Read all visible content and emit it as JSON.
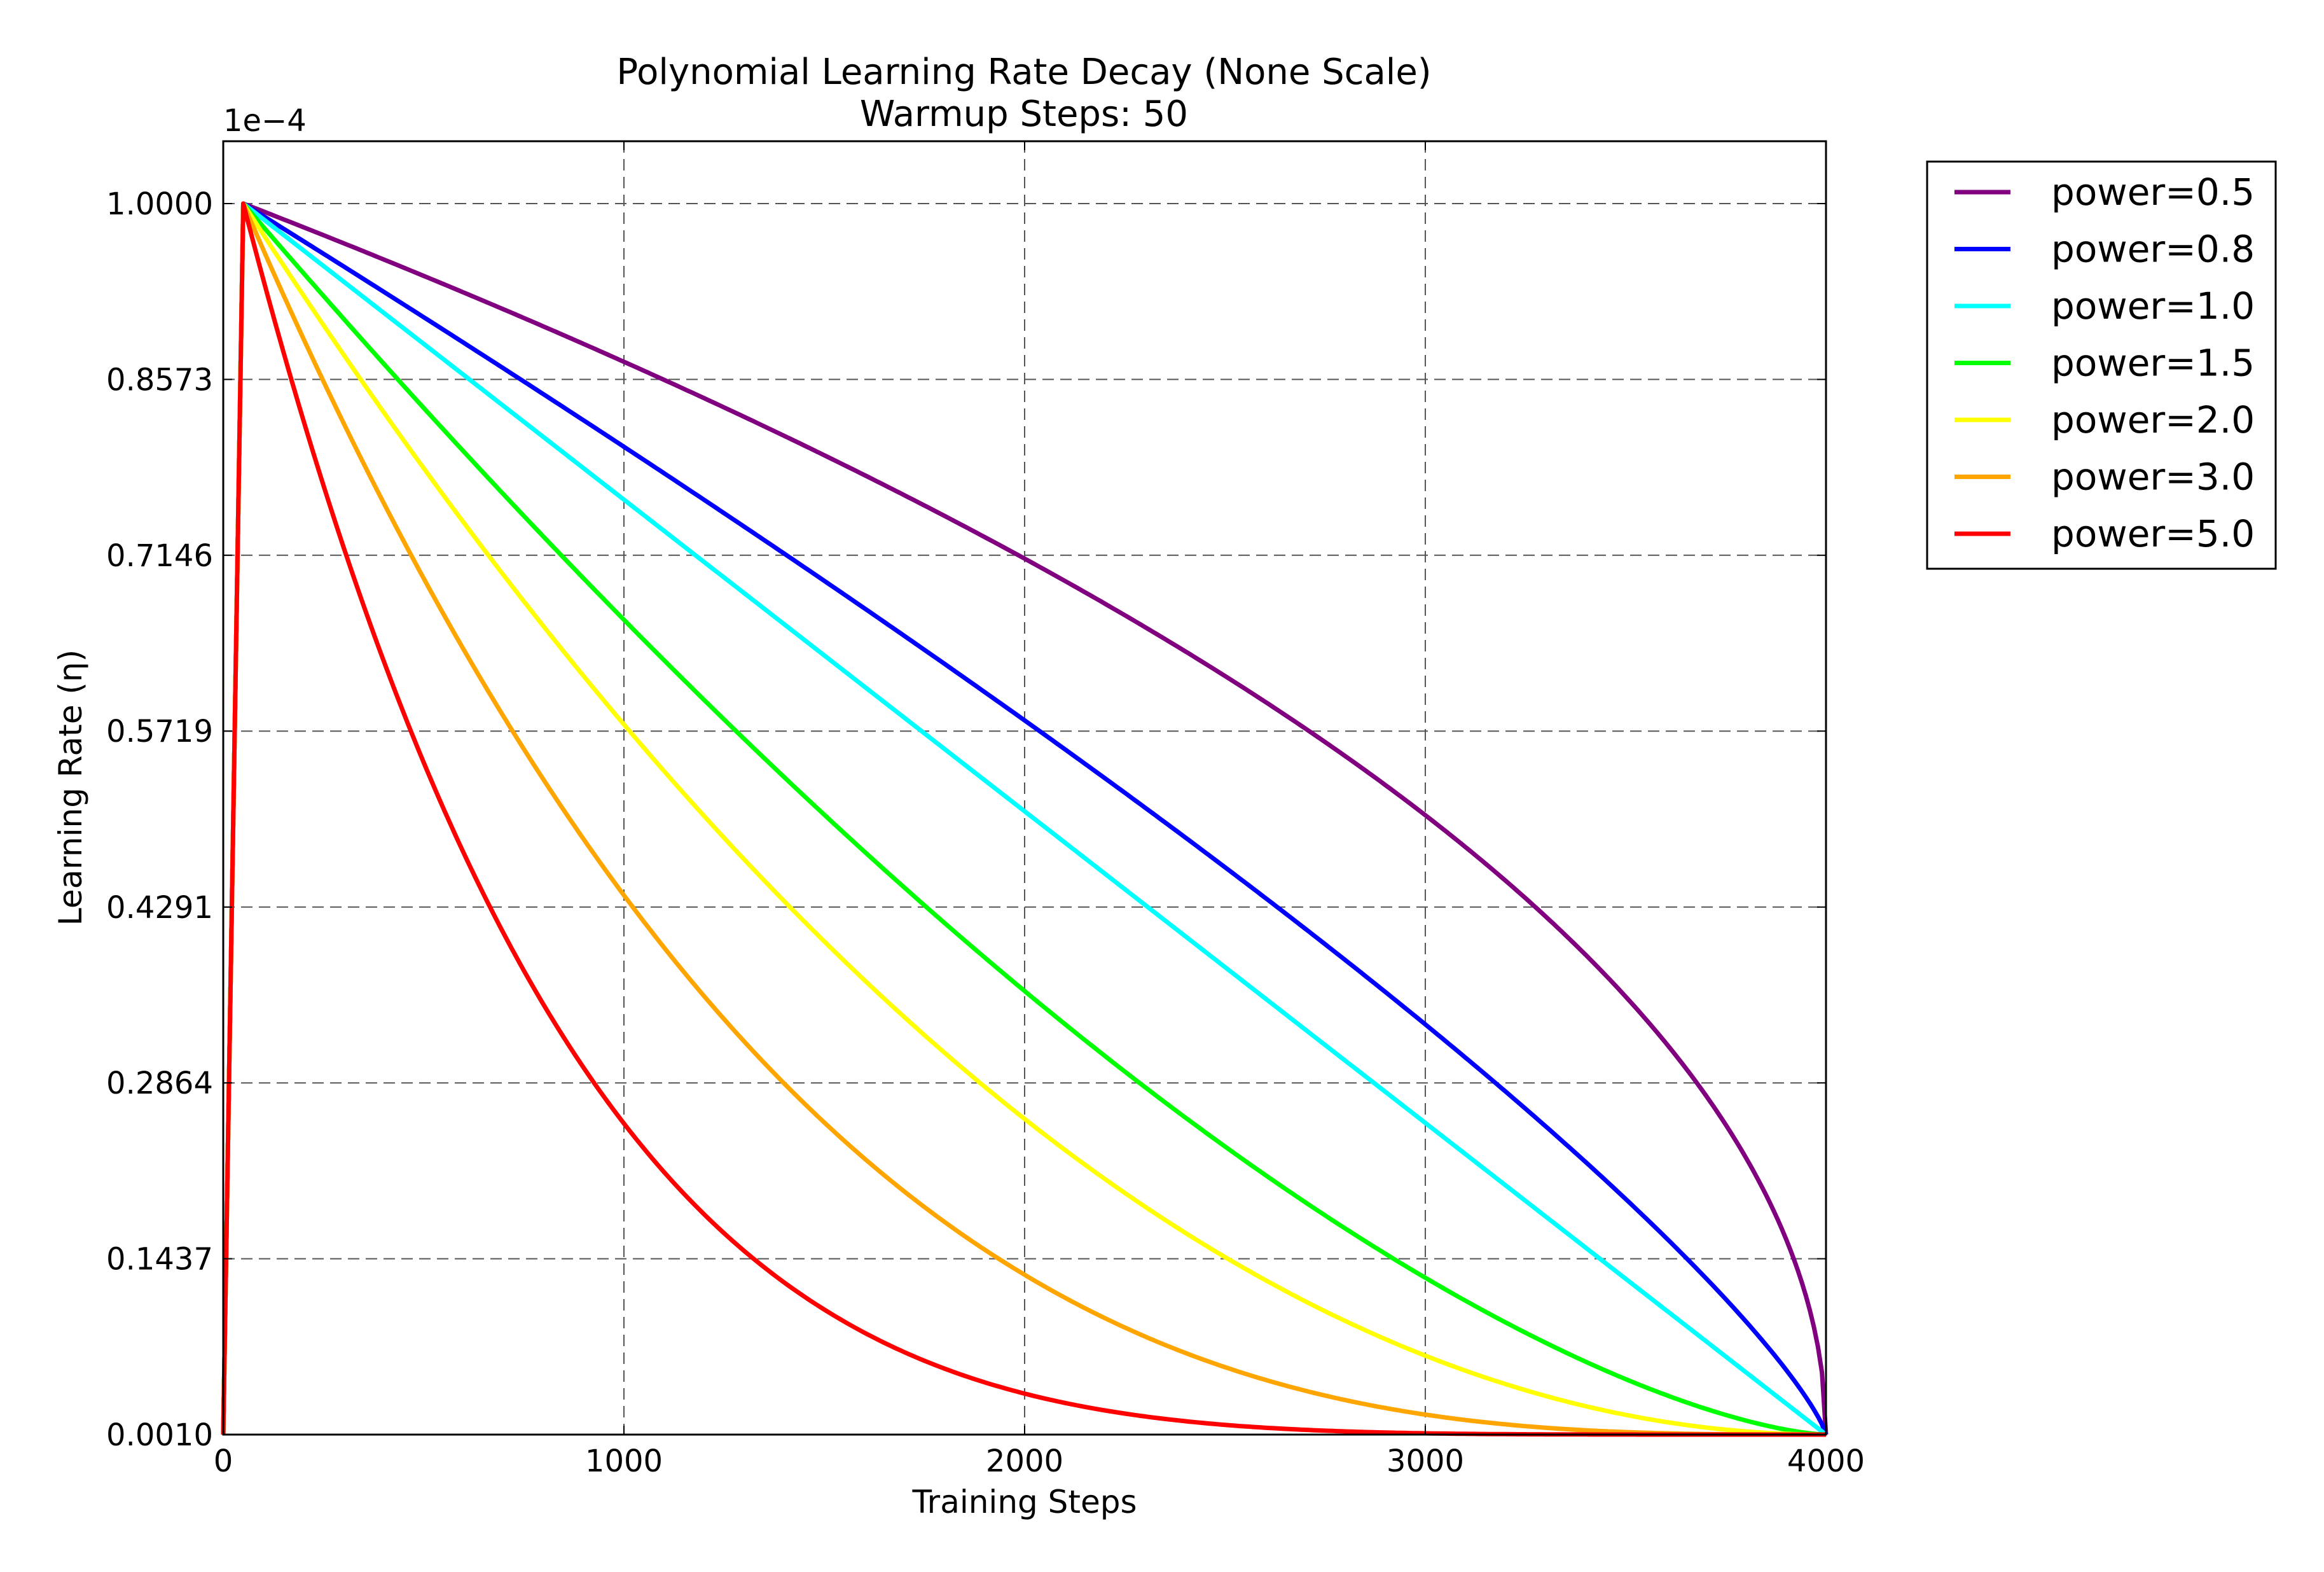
{
  "chart_data": {
    "type": "line",
    "title": "Polynomial Learning Rate Decay (None Scale)",
    "subtitle": "Warmup Steps: 50",
    "xlabel": "Training Steps",
    "ylabel": "Learning Rate (η)",
    "y_multiplier": "1e−4",
    "xlim": [
      0,
      4000
    ],
    "ylim": [
      0.001,
      1.0
    ],
    "x_ticks": [
      "0",
      "1000",
      "2000",
      "3000",
      "4000"
    ],
    "y_ticks": [
      "0.0010",
      "0.1437",
      "0.2864",
      "0.4291",
      "0.5719",
      "0.7146",
      "0.8573",
      "1.0000"
    ],
    "grid": true,
    "legend_position": "outside-top-right",
    "warmup_steps": 50,
    "total_steps": 4000,
    "series": [
      {
        "name": "power=0.5",
        "power": 0.5,
        "color": "#800080"
      },
      {
        "name": "power=0.8",
        "power": 0.8,
        "color": "#0000ff"
      },
      {
        "name": "power=1.0",
        "power": 1.0,
        "color": "#00ffff"
      },
      {
        "name": "power=1.5",
        "power": 1.5,
        "color": "#00ff00"
      },
      {
        "name": "power=2.0",
        "power": 2.0,
        "color": "#ffff00"
      },
      {
        "name": "power=3.0",
        "power": 3.0,
        "color": "#ffa500"
      },
      {
        "name": "power=5.0",
        "power": 5.0,
        "color": "#ff0000"
      }
    ]
  }
}
